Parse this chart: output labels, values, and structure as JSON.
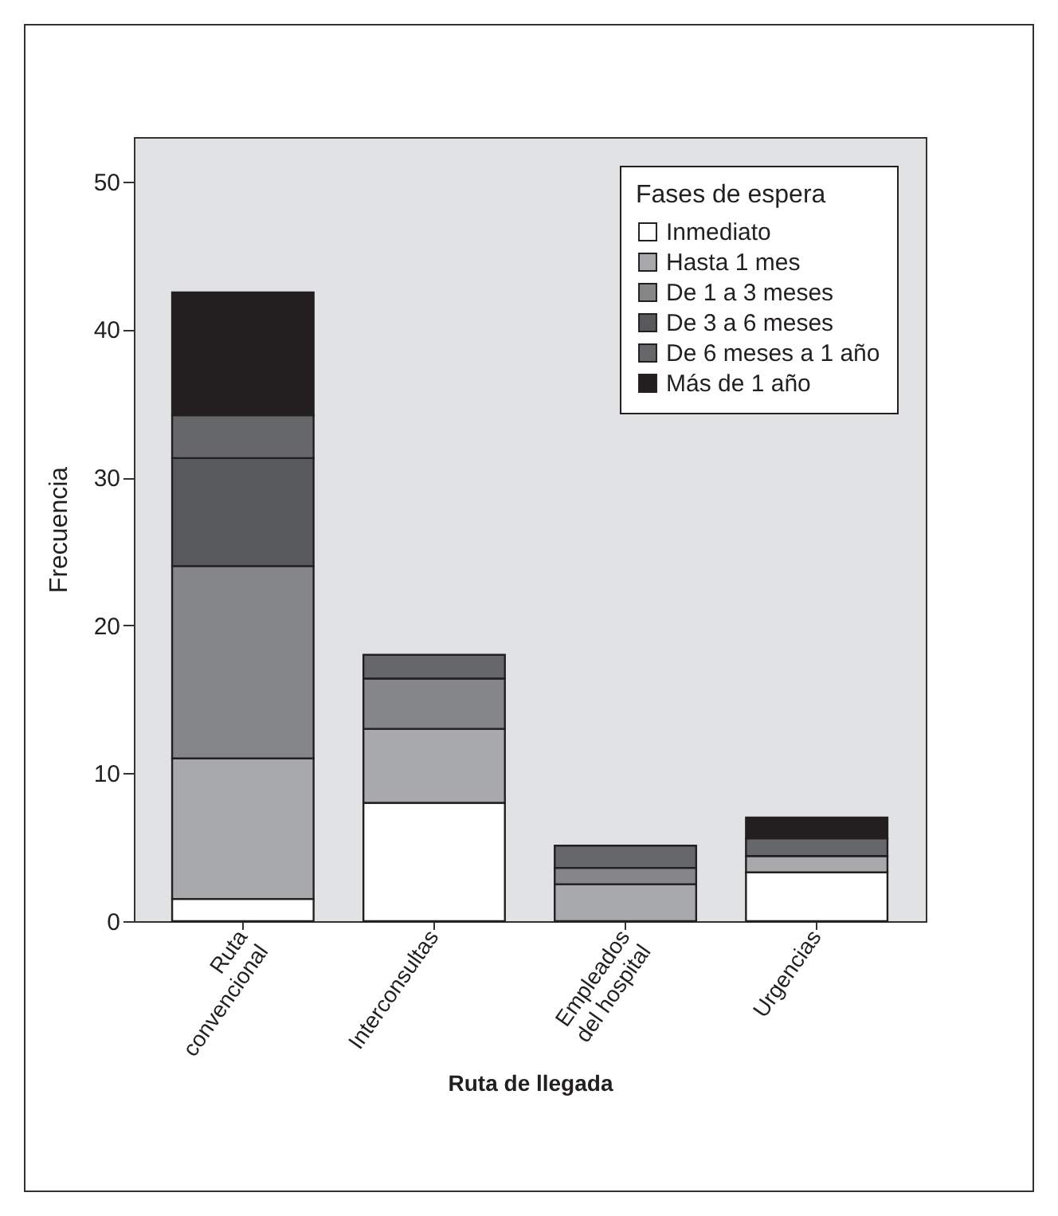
{
  "chart_data": {
    "type": "bar",
    "stacked": true,
    "xlabel": "Ruta de llegada",
    "ylabel": "Frecuencia",
    "legend_title": "Fases de espera",
    "legend": "top right",
    "categories": [
      "Ruta convencional",
      "Interconsultas",
      "Empleados del hospital",
      "Urgencias"
    ],
    "series": [
      {
        "name": "Inmediato",
        "color": "#ffffff",
        "values": [
          1.5,
          8,
          null,
          3.3
        ]
      },
      {
        "name": "Hasta 1 mes",
        "color": "#a8a9ab",
        "values": [
          9.5,
          5,
          2.5,
          1.1
        ]
      },
      {
        "name": "De 1 a 3 meses",
        "color": "#858688",
        "values": [
          13,
          3.4,
          1.1,
          null
        ]
      },
      {
        "name": "De 3 a 6 meses",
        "color": "#58595b",
        "values": [
          7.3,
          null,
          null,
          null
        ]
      },
      {
        "name": "De 6 meses a 1 año",
        "color": "#666769",
        "values": [
          2.9,
          1.6,
          1.5,
          1.2
        ]
      },
      {
        "name": "Más de 1 año",
        "color": "#231f20",
        "values": [
          8.3,
          null,
          null,
          1.4
        ]
      }
    ],
    "ylim": [
      0,
      53
    ],
    "yticks": [
      0,
      10,
      20,
      30,
      40,
      50
    ],
    "grid": false
  }
}
